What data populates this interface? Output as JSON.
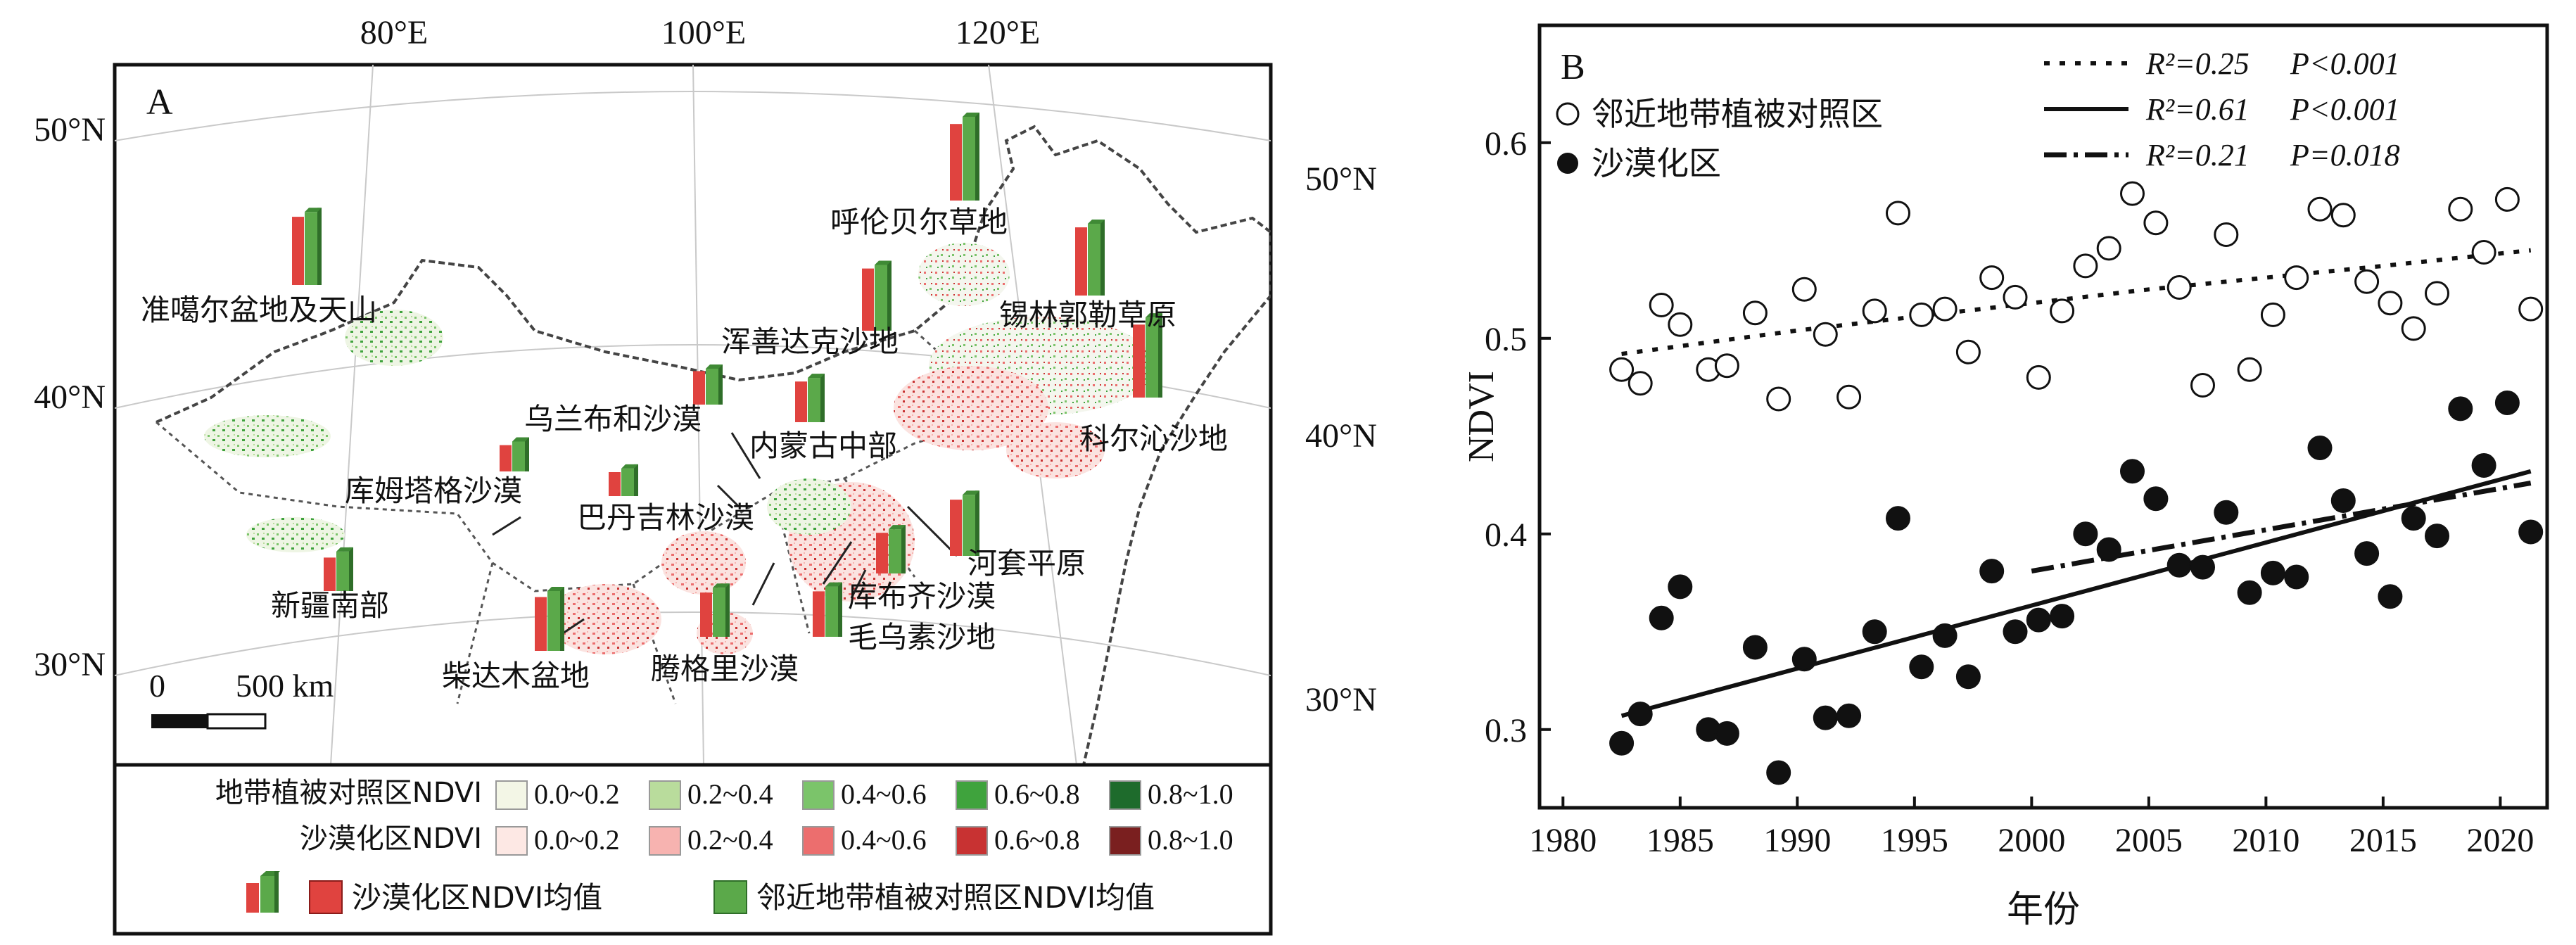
{
  "panel_a": {
    "letter": "A",
    "lon_labels": [
      "80°E",
      "100°E",
      "120°E"
    ],
    "lat_labels_left": [
      "50°N",
      "40°N",
      "30°N"
    ],
    "lat_labels_right": [
      "50°N",
      "40°N",
      "30°N"
    ],
    "scale_zero": "0",
    "scale_text": "500 km",
    "regions": [
      {
        "name": "准噶尔盆地及天山",
        "desert": 0.57,
        "control": 0.61
      },
      {
        "name": "呼伦贝尔草地",
        "desert": 0.64,
        "control": 0.7
      },
      {
        "name": "浑善达克沙地",
        "desert": 0.52,
        "control": 0.55
      },
      {
        "name": "锡林郭勒草原",
        "desert": 0.57,
        "control": 0.6
      },
      {
        "name": "乌兰布和沙漠",
        "desert": 0.28,
        "control": 0.3
      },
      {
        "name": "内蒙古中部",
        "desert": 0.34,
        "control": 0.37
      },
      {
        "name": "科尔沁沙地",
        "desert": 0.61,
        "control": 0.67
      },
      {
        "name": "库姆塔格沙漠",
        "desert": 0.22,
        "control": 0.25
      },
      {
        "name": "巴丹吉林沙漠",
        "desert": 0.2,
        "control": 0.23
      },
      {
        "name": "河套平原",
        "desert": 0.47,
        "control": 0.51
      },
      {
        "name": "新疆南部",
        "desert": 0.28,
        "control": 0.33
      },
      {
        "name": "库布齐沙漠",
        "desert": 0.34,
        "control": 0.37
      },
      {
        "name": "柴达木盆地",
        "desert": 0.45,
        "control": 0.5
      },
      {
        "name": "腾格里沙漠",
        "desert": 0.37,
        "control": 0.41
      },
      {
        "name": "毛乌素沙地",
        "desert": 0.38,
        "control": 0.42
      }
    ],
    "legend": {
      "control_label": "地带植被对照区NDVI",
      "desert_label": "沙漠化区NDVI",
      "bins": [
        "0.0~0.2",
        "0.2~0.4",
        "0.4~0.6",
        "0.6~0.8",
        "0.8~1.0"
      ],
      "control_colors": [
        "#f3f6e6",
        "#b9dc9c",
        "#7bc46a",
        "#3fa33d",
        "#1e6b2c"
      ],
      "desert_colors": [
        "#fde8e4",
        "#f7b3b0",
        "#ec6e6e",
        "#c83232",
        "#7a1f1f"
      ],
      "bar_desert_label": "沙漠化区NDVI均值",
      "bar_control_label": "邻近地带植被对照区NDVI均值"
    }
  },
  "chart_data": {
    "type": "scatter",
    "panel_letter": "B",
    "xlabel": "年份",
    "ylabel": "NDVI",
    "xlim": [
      1979,
      2022
    ],
    "ylim": [
      0.26,
      0.66
    ],
    "x_ticks": [
      1980,
      1985,
      1990,
      1995,
      2000,
      2005,
      2010,
      2015,
      2020
    ],
    "y_ticks": [
      0.3,
      0.4,
      0.5,
      0.6
    ],
    "series": [
      {
        "name": "邻近地带植被对照区",
        "marker": "open-circle",
        "x": [
          1982.5,
          1983.3,
          1984.2,
          1985.0,
          1986.2,
          1987.0,
          1988.2,
          1989.2,
          1990.3,
          1991.2,
          1992.2,
          1993.3,
          1994.3,
          1995.3,
          1996.3,
          1997.3,
          1998.3,
          1999.3,
          2000.3,
          2001.3,
          2002.3,
          2003.3,
          2004.3,
          2005.3,
          2006.3,
          2007.3,
          2008.3,
          2009.3,
          2010.3,
          2011.3,
          2012.3,
          2013.3,
          2014.3,
          2015.3,
          2016.3,
          2017.3,
          2018.3,
          2019.3,
          2020.3,
          2021.3
        ],
        "y": [
          0.484,
          0.477,
          0.517,
          0.507,
          0.484,
          0.486,
          0.513,
          0.469,
          0.525,
          0.502,
          0.47,
          0.514,
          0.564,
          0.512,
          0.515,
          0.493,
          0.531,
          0.521,
          0.48,
          0.514,
          0.537,
          0.546,
          0.574,
          0.559,
          0.526,
          0.476,
          0.553,
          0.484,
          0.512,
          0.531,
          0.566,
          0.563,
          0.529,
          0.518,
          0.505,
          0.523,
          0.566,
          0.544,
          0.571,
          0.515
        ]
      },
      {
        "name": "沙漠化区",
        "marker": "filled-circle",
        "x": [
          1982.5,
          1983.3,
          1984.2,
          1985.0,
          1986.2,
          1987.0,
          1988.2,
          1989.2,
          1990.3,
          1991.2,
          1992.2,
          1993.3,
          1994.3,
          1995.3,
          1996.3,
          1997.3,
          1998.3,
          1999.3,
          2000.3,
          2001.3,
          2002.3,
          2003.3,
          2004.3,
          2005.3,
          2006.3,
          2007.3,
          2008.3,
          2009.3,
          2010.3,
          2011.3,
          2012.3,
          2013.3,
          2014.3,
          2015.3,
          2016.3,
          2017.3,
          2018.3,
          2019.3,
          2020.3,
          2021.3
        ],
        "y": [
          0.293,
          0.308,
          0.357,
          0.373,
          0.3,
          0.298,
          0.342,
          0.278,
          0.336,
          0.306,
          0.307,
          0.35,
          0.408,
          0.332,
          0.348,
          0.327,
          0.381,
          0.35,
          0.356,
          0.358,
          0.4,
          0.392,
          0.432,
          0.418,
          0.384,
          0.383,
          0.411,
          0.37,
          0.38,
          0.378,
          0.444,
          0.417,
          0.39,
          0.368,
          0.408,
          0.399,
          0.464,
          0.435,
          0.467,
          0.401
        ]
      }
    ],
    "trend_lines": [
      {
        "style": "dotted",
        "fit": "curve",
        "x": [
          1982.5,
          1985,
          1990,
          1995,
          2000,
          2005,
          2010,
          2015,
          2021.3
        ],
        "y": [
          0.492,
          0.496,
          0.504,
          0.511,
          0.518,
          0.525,
          0.531,
          0.537,
          0.545
        ],
        "r2_label": "R²=0.25",
        "p_label": "P<0.001"
      },
      {
        "style": "solid",
        "fit": "linear",
        "x": [
          1982.5,
          2021.3
        ],
        "y": [
          0.307,
          0.432
        ],
        "r2_label": "R²=0.61",
        "p_label": "P<0.001"
      },
      {
        "style": "dash-dot",
        "fit": "linear",
        "x": [
          2000,
          2021.3
        ],
        "y": [
          0.381,
          0.426
        ],
        "r2_label": "R²=0.21",
        "p_label": "P=0.018"
      }
    ]
  }
}
